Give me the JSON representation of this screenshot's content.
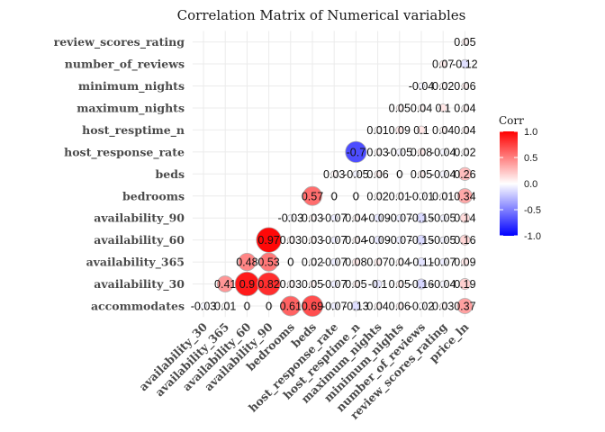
{
  "chart_data": {
    "type": "heatmap",
    "title": "Correlation Matrix of Numerical variables",
    "x_variables": [
      "availability_30",
      "availability_365",
      "availability_60",
      "availability_90",
      "bedrooms",
      "beds",
      "host_response_rate",
      "host_resptime_n",
      "maximum_nights",
      "minimum_nights",
      "number_of_reviews",
      "review_scores_rating",
      "price_ln"
    ],
    "y_variables": [
      "accommodates",
      "availability_30",
      "availability_365",
      "availability_60",
      "availability_90",
      "bedrooms",
      "beds",
      "host_response_rate",
      "host_resptime_n",
      "maximum_nights",
      "minimum_nights",
      "number_of_reviews",
      "review_scores_rating"
    ],
    "cells": [
      {
        "x": 0,
        "y": 0,
        "value": -0.03,
        "label": "-0.03"
      },
      {
        "x": 1,
        "y": 0,
        "value": 0.01,
        "label": "0.01"
      },
      {
        "x": 2,
        "y": 0,
        "value": 0.0,
        "label": "0"
      },
      {
        "x": 3,
        "y": 0,
        "value": 0.0,
        "label": "0"
      },
      {
        "x": 4,
        "y": 0,
        "value": 0.61,
        "label": "0.61"
      },
      {
        "x": 5,
        "y": 0,
        "value": 0.69,
        "label": "0.69"
      },
      {
        "x": 6,
        "y": 0,
        "value": -0.07,
        "label": "-0.07"
      },
      {
        "x": 7,
        "y": 0,
        "value": -0.13,
        "label": "-0.13"
      },
      {
        "x": 8,
        "y": 0,
        "value": 0.04,
        "label": "0.04"
      },
      {
        "x": 9,
        "y": 0,
        "value": 0.06,
        "label": "0.06"
      },
      {
        "x": 10,
        "y": 0,
        "value": -0.02,
        "label": "-0.02"
      },
      {
        "x": 11,
        "y": 0,
        "value": 0.03,
        "label": "0.03"
      },
      {
        "x": 12,
        "y": 0,
        "value": 0.37,
        "label": "0.37"
      },
      {
        "x": 1,
        "y": 1,
        "value": 0.41,
        "label": "0.41"
      },
      {
        "x": 2,
        "y": 1,
        "value": 0.9,
        "label": "0.9"
      },
      {
        "x": 3,
        "y": 1,
        "value": 0.82,
        "label": "0.82"
      },
      {
        "x": 4,
        "y": 1,
        "value": 0.03,
        "label": "0.03"
      },
      {
        "x": 5,
        "y": 1,
        "value": 0.05,
        "label": "0.05"
      },
      {
        "x": 6,
        "y": 1,
        "value": -0.07,
        "label": "-0.07"
      },
      {
        "x": 7,
        "y": 1,
        "value": 0.05,
        "label": "0.05"
      },
      {
        "x": 8,
        "y": 1,
        "value": -0.1,
        "label": "-0.1"
      },
      {
        "x": 9,
        "y": 1,
        "value": 0.05,
        "label": "0.05"
      },
      {
        "x": 10,
        "y": 1,
        "value": -0.16,
        "label": "-0.16"
      },
      {
        "x": 11,
        "y": 1,
        "value": -0.04,
        "label": "-0.04"
      },
      {
        "x": 12,
        "y": 1,
        "value": 0.19,
        "label": "0.19"
      },
      {
        "x": 2,
        "y": 2,
        "value": 0.48,
        "label": "0.48"
      },
      {
        "x": 3,
        "y": 2,
        "value": 0.53,
        "label": "0.53"
      },
      {
        "x": 4,
        "y": 2,
        "value": 0.0,
        "label": "0"
      },
      {
        "x": 5,
        "y": 2,
        "value": 0.02,
        "label": "0.02"
      },
      {
        "x": 6,
        "y": 2,
        "value": -0.07,
        "label": "-0.07"
      },
      {
        "x": 7,
        "y": 2,
        "value": 0.08,
        "label": "0.08"
      },
      {
        "x": 8,
        "y": 2,
        "value": 0.07,
        "label": "0.07"
      },
      {
        "x": 9,
        "y": 2,
        "value": 0.04,
        "label": "0.04"
      },
      {
        "x": 10,
        "y": 2,
        "value": -0.11,
        "label": "-0.11"
      },
      {
        "x": 11,
        "y": 2,
        "value": -0.07,
        "label": "-0.07"
      },
      {
        "x": 12,
        "y": 2,
        "value": 0.09,
        "label": "0.09"
      },
      {
        "x": 3,
        "y": 3,
        "value": 0.97,
        "label": "0.97"
      },
      {
        "x": 4,
        "y": 3,
        "value": 0.03,
        "label": "0.03"
      },
      {
        "x": 5,
        "y": 3,
        "value": 0.03,
        "label": "0.03"
      },
      {
        "x": 6,
        "y": 3,
        "value": -0.07,
        "label": "-0.07"
      },
      {
        "x": 7,
        "y": 3,
        "value": 0.04,
        "label": "0.04"
      },
      {
        "x": 8,
        "y": 3,
        "value": -0.09,
        "label": "-0.09"
      },
      {
        "x": 9,
        "y": 3,
        "value": -0.07,
        "label": "-0.07"
      },
      {
        "x": 10,
        "y": 3,
        "value": -0.15,
        "label": "-0.15"
      },
      {
        "x": 11,
        "y": 3,
        "value": -0.05,
        "label": "-0.05"
      },
      {
        "x": 12,
        "y": 3,
        "value": 0.16,
        "label": "0.16"
      },
      {
        "x": 4,
        "y": 4,
        "value": -0.03,
        "label": "-0.03"
      },
      {
        "x": 5,
        "y": 4,
        "value": 0.03,
        "label": "0.03"
      },
      {
        "x": 6,
        "y": 4,
        "value": -0.07,
        "label": "-0.07"
      },
      {
        "x": 7,
        "y": 4,
        "value": 0.04,
        "label": "0.04"
      },
      {
        "x": 8,
        "y": 4,
        "value": -0.09,
        "label": "-0.09"
      },
      {
        "x": 9,
        "y": 4,
        "value": -0.07,
        "label": "-0.07"
      },
      {
        "x": 10,
        "y": 4,
        "value": -0.15,
        "label": "-0.15"
      },
      {
        "x": 11,
        "y": 4,
        "value": -0.05,
        "label": "-0.05"
      },
      {
        "x": 12,
        "y": 4,
        "value": 0.14,
        "label": "0.14"
      },
      {
        "x": 5,
        "y": 5,
        "value": 0.57,
        "label": "0.57"
      },
      {
        "x": 6,
        "y": 5,
        "value": 0.0,
        "label": "0"
      },
      {
        "x": 7,
        "y": 5,
        "value": 0.0,
        "label": "0"
      },
      {
        "x": 8,
        "y": 5,
        "value": 0.02,
        "label": "0.02"
      },
      {
        "x": 9,
        "y": 5,
        "value": 0.01,
        "label": "0.01"
      },
      {
        "x": 10,
        "y": 5,
        "value": -0.01,
        "label": "-0.01"
      },
      {
        "x": 11,
        "y": 5,
        "value": 0.01,
        "label": "0.01"
      },
      {
        "x": 12,
        "y": 5,
        "value": 0.34,
        "label": "0.34"
      },
      {
        "x": 6,
        "y": 6,
        "value": 0.03,
        "label": "0.03"
      },
      {
        "x": 7,
        "y": 6,
        "value": -0.05,
        "label": "-0.05"
      },
      {
        "x": 8,
        "y": 6,
        "value": 0.06,
        "label": "0.06"
      },
      {
        "x": 9,
        "y": 6,
        "value": 0.0,
        "label": "0"
      },
      {
        "x": 10,
        "y": 6,
        "value": 0.05,
        "label": "0.05"
      },
      {
        "x": 11,
        "y": 6,
        "value": -0.04,
        "label": "-0.04"
      },
      {
        "x": 12,
        "y": 6,
        "value": 0.26,
        "label": "0.26"
      },
      {
        "x": 7,
        "y": 7,
        "value": -0.7,
        "label": "-0.7"
      },
      {
        "x": 8,
        "y": 7,
        "value": 0.03,
        "label": "0.03"
      },
      {
        "x": 9,
        "y": 7,
        "value": -0.05,
        "label": "-0.05"
      },
      {
        "x": 10,
        "y": 7,
        "value": 0.08,
        "label": "0.08"
      },
      {
        "x": 11,
        "y": 7,
        "value": -0.04,
        "label": "-0.04"
      },
      {
        "x": 12,
        "y": 7,
        "value": 0.02,
        "label": "0.02"
      },
      {
        "x": 8,
        "y": 8,
        "value": 0.01,
        "label": "0.01"
      },
      {
        "x": 9,
        "y": 8,
        "value": 0.09,
        "label": "0.09"
      },
      {
        "x": 10,
        "y": 8,
        "value": 0.1,
        "label": "0.1"
      },
      {
        "x": 11,
        "y": 8,
        "value": 0.04,
        "label": "0.04"
      },
      {
        "x": 12,
        "y": 8,
        "value": 0.04,
        "label": "0.04"
      },
      {
        "x": 9,
        "y": 9,
        "value": 0.05,
        "label": "0.05"
      },
      {
        "x": 10,
        "y": 9,
        "value": 0.04,
        "label": "0.04"
      },
      {
        "x": 11,
        "y": 9,
        "value": 0.1,
        "label": "0.1"
      },
      {
        "x": 12,
        "y": 9,
        "value": 0.04,
        "label": "0.04"
      },
      {
        "x": 10,
        "y": 10,
        "value": -0.04,
        "label": "-0.04"
      },
      {
        "x": 11,
        "y": 10,
        "value": 0.02,
        "label": "0.02"
      },
      {
        "x": 12,
        "y": 10,
        "value": 0.06,
        "label": "0.06"
      },
      {
        "x": 11,
        "y": 11,
        "value": 0.07,
        "label": "0.07"
      },
      {
        "x": 12,
        "y": 11,
        "value": -0.12,
        "label": "-0.12"
      },
      {
        "x": 12,
        "y": 12,
        "value": 0.05,
        "label": "0.05"
      }
    ],
    "legend": {
      "title": "Corr",
      "ticks": [
        1.0,
        0.5,
        0.0,
        -0.5,
        -1.0
      ],
      "tick_labels": [
        "1.0",
        "0.5",
        "0.0",
        "-0.5",
        "-1.0"
      ],
      "colors": {
        "low": "#0000ff",
        "mid": "#ffffff",
        "high": "#ff0000"
      },
      "placement": "right"
    },
    "grid": true
  }
}
